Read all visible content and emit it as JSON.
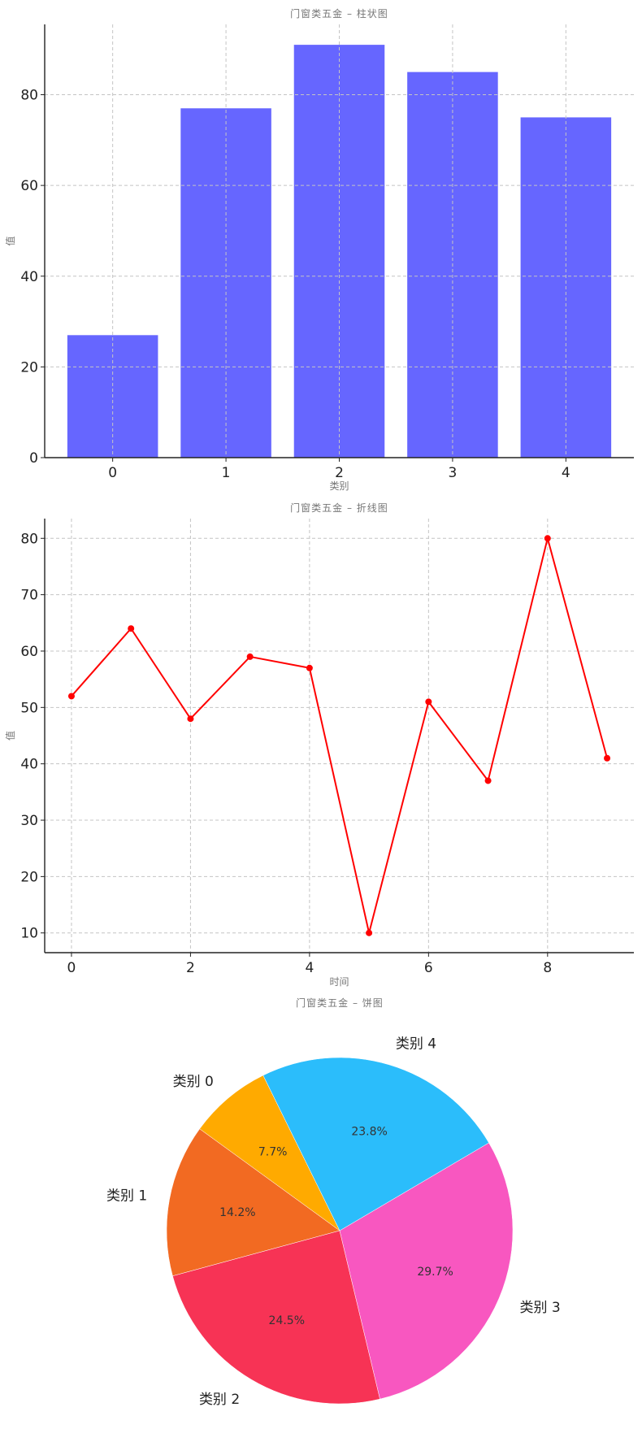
{
  "chart_data": [
    {
      "type": "bar",
      "title": "门窗类五金 – 柱状图",
      "xlabel": "类别",
      "ylabel": "值",
      "categories": [
        "0",
        "1",
        "2",
        "3",
        "4"
      ],
      "values": [
        27,
        77,
        91,
        85,
        75
      ],
      "ylim": [
        0,
        95.5
      ],
      "yticks": [
        0,
        20,
        40,
        60,
        80
      ],
      "color": "#6666ff",
      "grid": true
    },
    {
      "type": "line",
      "title": "门窗类五金 – 折线图",
      "xlabel": "时间",
      "ylabel": "值",
      "x": [
        0,
        1,
        2,
        3,
        4,
        5,
        6,
        7,
        8,
        9
      ],
      "values": [
        52,
        64,
        48,
        59,
        57,
        10,
        51,
        37,
        80,
        41
      ],
      "xlim": [
        -0.45,
        9.45
      ],
      "ylim": [
        6.5,
        83.5
      ],
      "xticks": [
        0,
        2,
        4,
        6,
        8
      ],
      "yticks": [
        10,
        20,
        30,
        40,
        50,
        60,
        70,
        80
      ],
      "color": "#ff0000",
      "grid": true
    },
    {
      "type": "pie",
      "title": "门窗类五金 – 饼图",
      "slices": [
        {
          "label": "类别 0",
          "value": 7.7,
          "pct_label": "7.7%",
          "color": "#ffaa00"
        },
        {
          "label": "类别 1",
          "value": 14.2,
          "pct_label": "14.2%",
          "color": "#f26a22"
        },
        {
          "label": "类别 2",
          "value": 24.5,
          "pct_label": "24.5%",
          "color": "#f73355"
        },
        {
          "label": "类别 3",
          "value": 29.7,
          "pct_label": "29.7%",
          "color": "#f857c0"
        },
        {
          "label": "类别 4",
          "value": 23.8,
          "pct_label": "23.8%",
          "color": "#2bbdfb"
        }
      ]
    }
  ]
}
